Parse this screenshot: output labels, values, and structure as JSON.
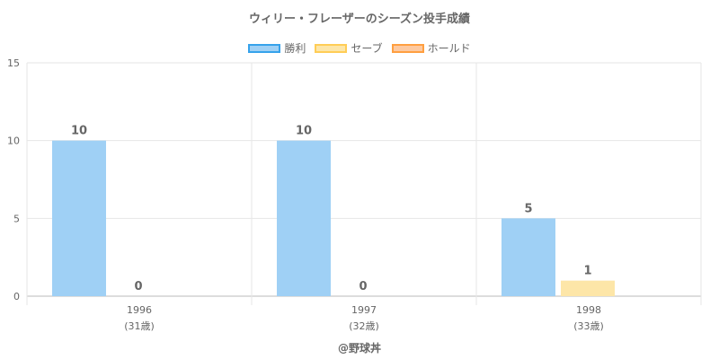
{
  "chart_data": {
    "type": "bar",
    "title": "ウィリー・フレーザーのシーズン投手成績",
    "categories": [
      "1996",
      "1997",
      "1998"
    ],
    "category_sublabels": [
      "(31歳)",
      "(32歳)",
      "(33歳)"
    ],
    "series": [
      {
        "name": "勝利",
        "values": [
          10,
          10,
          5
        ],
        "fill": "#9fd0f5",
        "stroke": "#36a2eb"
      },
      {
        "name": "セーブ",
        "values": [
          0,
          0,
          1
        ],
        "fill": "#fde6a8",
        "stroke": "#ffcd56"
      },
      {
        "name": "ホールド",
        "values": [
          null,
          null,
          null
        ],
        "fill": "#fdc9a0",
        "stroke": "#ff9f40"
      }
    ],
    "ylim": [
      0,
      15
    ],
    "yticks": [
      "0",
      "5",
      "10",
      "15"
    ],
    "grid": true,
    "legend_position": "top",
    "credit": "@野球丼"
  }
}
